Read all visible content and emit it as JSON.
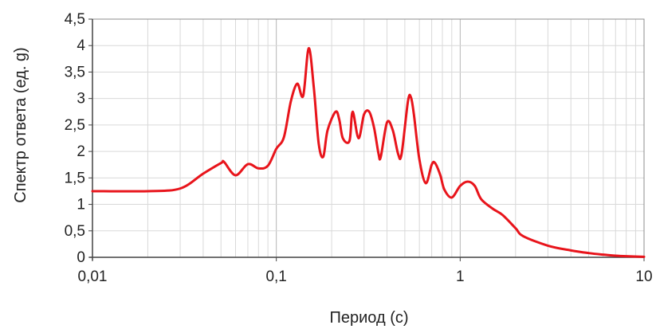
{
  "chart_data": {
    "type": "line",
    "title": "",
    "xlabel": "Период (с)",
    "ylabel": "Спектр ответа (ед. g)",
    "xscale": "log",
    "xlim": [
      0.01,
      10
    ],
    "ylim": [
      0,
      4.5
    ],
    "grid": true,
    "legend": "none",
    "x_ticks": [
      {
        "value": 0.01,
        "label": "0,01"
      },
      {
        "value": 0.1,
        "label": "0,1"
      },
      {
        "value": 1,
        "label": "1"
      },
      {
        "value": 10,
        "label": "10"
      }
    ],
    "y_ticks": [
      {
        "value": 0,
        "label": "0"
      },
      {
        "value": 0.5,
        "label": "0,5"
      },
      {
        "value": 1,
        "label": "1"
      },
      {
        "value": 1.5,
        "label": "1,5"
      },
      {
        "value": 2,
        "label": "2"
      },
      {
        "value": 2.5,
        "label": "2,5"
      },
      {
        "value": 3,
        "label": "3"
      },
      {
        "value": 3.5,
        "label": "3,5"
      },
      {
        "value": 4,
        "label": "4"
      },
      {
        "value": 4.5,
        "label": "4,5"
      }
    ],
    "series": [
      {
        "color": "#e8141b",
        "points": [
          [
            0.01,
            1.25
          ],
          [
            0.02,
            1.25
          ],
          [
            0.03,
            1.3
          ],
          [
            0.04,
            1.58
          ],
          [
            0.05,
            1.78
          ],
          [
            0.052,
            1.8
          ],
          [
            0.06,
            1.55
          ],
          [
            0.07,
            1.76
          ],
          [
            0.08,
            1.68
          ],
          [
            0.09,
            1.73
          ],
          [
            0.1,
            2.05
          ],
          [
            0.11,
            2.27
          ],
          [
            0.12,
            2.95
          ],
          [
            0.13,
            3.28
          ],
          [
            0.14,
            3.05
          ],
          [
            0.15,
            3.95
          ],
          [
            0.16,
            3.2
          ],
          [
            0.17,
            2.15
          ],
          [
            0.18,
            1.9
          ],
          [
            0.19,
            2.4
          ],
          [
            0.21,
            2.75
          ],
          [
            0.22,
            2.6
          ],
          [
            0.23,
            2.25
          ],
          [
            0.25,
            2.2
          ],
          [
            0.26,
            2.75
          ],
          [
            0.28,
            2.25
          ],
          [
            0.3,
            2.7
          ],
          [
            0.32,
            2.75
          ],
          [
            0.34,
            2.45
          ],
          [
            0.36,
            1.95
          ],
          [
            0.37,
            1.9
          ],
          [
            0.4,
            2.55
          ],
          [
            0.43,
            2.4
          ],
          [
            0.46,
            1.95
          ],
          [
            0.48,
            1.95
          ],
          [
            0.52,
            2.95
          ],
          [
            0.54,
            3.02
          ],
          [
            0.56,
            2.7
          ],
          [
            0.6,
            1.85
          ],
          [
            0.65,
            1.4
          ],
          [
            0.7,
            1.75
          ],
          [
            0.73,
            1.78
          ],
          [
            0.78,
            1.55
          ],
          [
            0.82,
            1.28
          ],
          [
            0.9,
            1.13
          ],
          [
            1.0,
            1.35
          ],
          [
            1.1,
            1.43
          ],
          [
            1.2,
            1.35
          ],
          [
            1.3,
            1.1
          ],
          [
            1.5,
            0.92
          ],
          [
            1.7,
            0.8
          ],
          [
            2.0,
            0.55
          ],
          [
            2.2,
            0.4
          ],
          [
            3.0,
            0.22
          ],
          [
            4.0,
            0.13
          ],
          [
            5.0,
            0.08
          ],
          [
            6.0,
            0.05
          ],
          [
            7.0,
            0.03
          ],
          [
            8.0,
            0.02
          ],
          [
            10.0,
            0.01
          ]
        ]
      }
    ]
  }
}
